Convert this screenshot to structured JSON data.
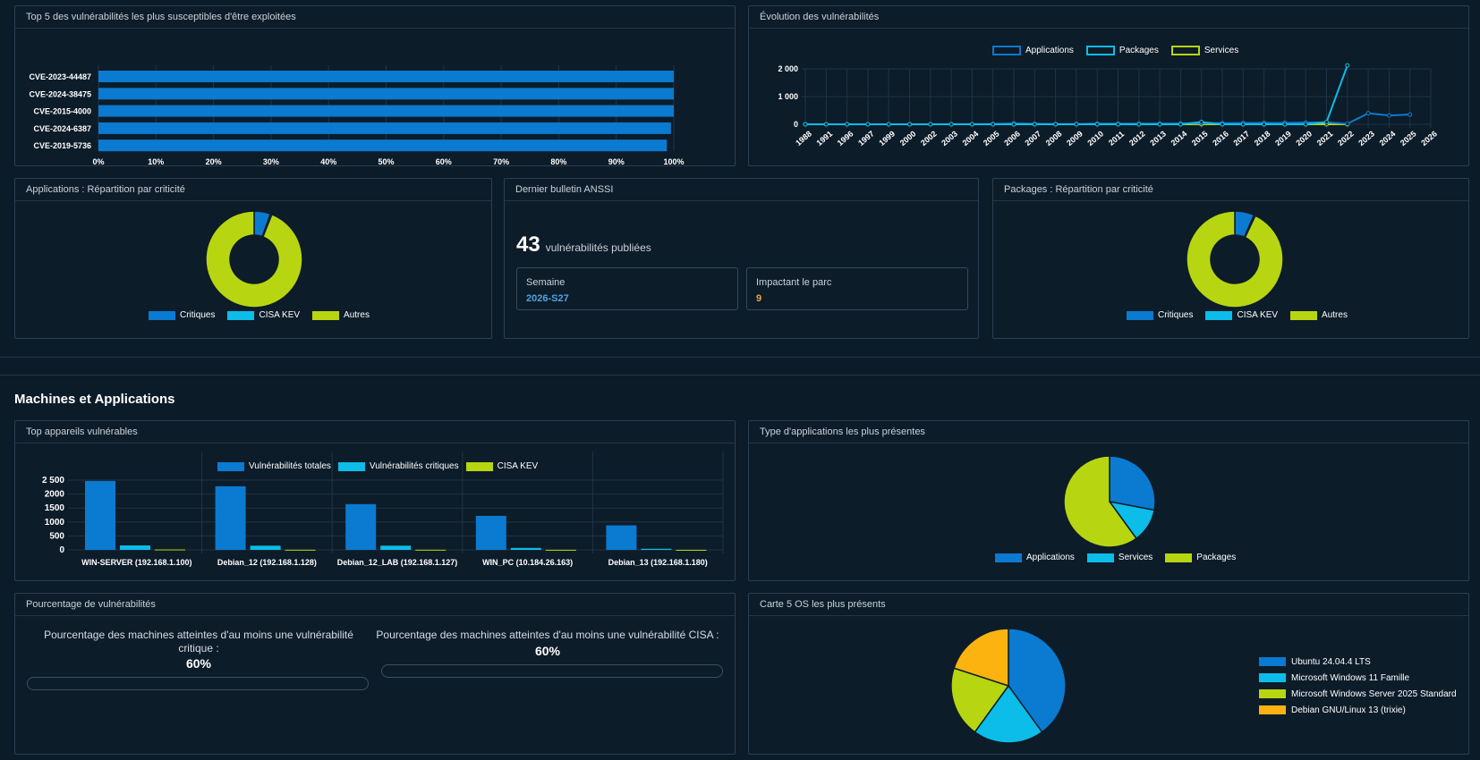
{
  "colors": {
    "blue": "#0b7ad1",
    "cyan": "#0bbde8",
    "lime": "#b7d611",
    "orange": "#fdb30f"
  },
  "top5": {
    "title": "Top 5 des vulnérabilités les plus susceptibles d'être exploitées",
    "chart_data": {
      "type": "bar",
      "orientation": "horizontal",
      "categories": [
        "CVE-2023-44487",
        "CVE-2024-38475",
        "CVE-2015-4000",
        "CVE-2024-6387",
        "CVE-2019-5736"
      ],
      "values": [
        100,
        100,
        100,
        99.5,
        98.8
      ],
      "xticks": [
        "0%",
        "10%",
        "20%",
        "30%",
        "40%",
        "50%",
        "60%",
        "70%",
        "80%",
        "90%",
        "100%"
      ],
      "xlim": [
        0,
        100
      ]
    }
  },
  "evolution": {
    "title": "Évolution des vulnérabilités",
    "legend": [
      "Applications",
      "Packages",
      "Services"
    ],
    "chart_data": {
      "type": "line",
      "x": [
        "1988",
        "1991",
        "1996",
        "1997",
        "1999",
        "2000",
        "2002",
        "2003",
        "2004",
        "2005",
        "2006",
        "2007",
        "2008",
        "2009",
        "2010",
        "2011",
        "2012",
        "2013",
        "2014",
        "2015",
        "2016",
        "2017",
        "2018",
        "2019",
        "2020",
        "2021",
        "2022",
        "2023",
        "2024",
        "2025",
        "2026"
      ],
      "yticks": [
        "0",
        "1 000",
        "2 000"
      ],
      "ylim": [
        0,
        2200
      ],
      "series": [
        {
          "name": "Applications",
          "values": [
            0,
            0,
            0,
            0,
            0,
            0,
            0,
            5,
            5,
            10,
            30,
            15,
            10,
            10,
            20,
            20,
            20,
            25,
            30,
            40,
            40,
            45,
            50,
            50,
            60,
            70,
            20,
            400,
            320,
            350,
            null
          ]
        },
        {
          "name": "Packages",
          "values": [
            0,
            0,
            0,
            0,
            0,
            0,
            0,
            0,
            0,
            0,
            0,
            0,
            0,
            0,
            0,
            0,
            0,
            0,
            0,
            80,
            0,
            0,
            0,
            0,
            0,
            80,
            2130,
            null,
            null,
            null,
            null
          ]
        },
        {
          "name": "Services",
          "values": [
            0,
            0,
            0,
            0,
            0,
            0,
            0,
            0,
            0,
            0,
            0,
            0,
            0,
            0,
            0,
            0,
            0,
            0,
            0,
            0,
            0,
            0,
            0,
            0,
            0,
            0,
            0,
            null,
            null,
            null,
            null
          ]
        }
      ]
    }
  },
  "apps_crit": {
    "title": "Applications : Répartition par criticité",
    "legend": [
      "Critiques",
      "CISA KEV",
      "Autres"
    ],
    "chart_data": {
      "type": "pie",
      "donut": true,
      "labels": [
        "Critiques",
        "CISA KEV",
        "Autres"
      ],
      "values": [
        5.5,
        0.5,
        94
      ]
    }
  },
  "anssi": {
    "title": "Dernier bulletin ANSSI",
    "count": "43",
    "count_label": "vulnérabilités publiées",
    "week_label": "Semaine",
    "week_value": "2026-S27",
    "impact_label": "Impactant le parc",
    "impact_value": "9"
  },
  "pkg_crit": {
    "title": "Packages : Répartition par criticité",
    "legend": [
      "Critiques",
      "CISA KEV",
      "Autres"
    ],
    "chart_data": {
      "type": "pie",
      "donut": true,
      "labels": [
        "Critiques",
        "CISA KEV",
        "Autres"
      ],
      "values": [
        6.5,
        0.5,
        93
      ]
    }
  },
  "section_title": "Machines et Applications",
  "devices": {
    "title": "Top appareils vulnérables",
    "legend": [
      "Vulnérabilités totales",
      "Vulnérabilités critiques",
      "CISA KEV"
    ],
    "chart_data": {
      "type": "bar",
      "categories": [
        "WIN-SERVER (192.168.1.100)",
        "Debian_12 (192.168.1.128)",
        "Debian_12_LAB (192.168.1.127)",
        "WIN_PC (10.184.26.163)",
        "Debian_13 (192.168.1.180)"
      ],
      "yticks": [
        "0",
        "500",
        "1000",
        "1500",
        "2000",
        "2 500"
      ],
      "ylim": [
        0,
        2500
      ],
      "series": [
        {
          "name": "Vulnérabilités totales",
          "values": [
            2470,
            2280,
            1640,
            1220,
            880
          ]
        },
        {
          "name": "Vulnérabilités critiques",
          "values": [
            160,
            150,
            150,
            70,
            40
          ]
        },
        {
          "name": "CISA KEV",
          "values": [
            15,
            5,
            5,
            3,
            2
          ]
        }
      ]
    }
  },
  "app_types": {
    "title": "Type d'applications les plus présentes",
    "legend": [
      "Applications",
      "Services",
      "Packages"
    ],
    "chart_data": {
      "type": "pie",
      "labels": [
        "Applications",
        "Services",
        "Packages"
      ],
      "values": [
        28,
        12,
        60
      ]
    }
  },
  "percent": {
    "title": "Pourcentage de vulnérabilités",
    "left_title": "Pourcentage des machines atteintes d'au moins une vulnérabilité critique :",
    "left_value": "60%",
    "right_title": "Pourcentage des machines atteintes d'au moins une vulnérabilité CISA :",
    "right_value": "60%"
  },
  "os": {
    "title": "Carte 5 OS les plus présents",
    "legend": [
      "Ubuntu 24.04.4 LTS",
      "Microsoft Windows 11 Famille",
      "Microsoft Windows Server 2025 Standard",
      "Debian GNU/Linux 13 (trixie)"
    ],
    "chart_data": {
      "type": "pie",
      "labels": [
        "Ubuntu 24.04.4 LTS",
        "Microsoft Windows 11 Famille",
        "Microsoft Windows Server 2025 Standard",
        "Debian GNU/Linux 13 (trixie)"
      ],
      "values": [
        40,
        20,
        20,
        20
      ]
    }
  }
}
